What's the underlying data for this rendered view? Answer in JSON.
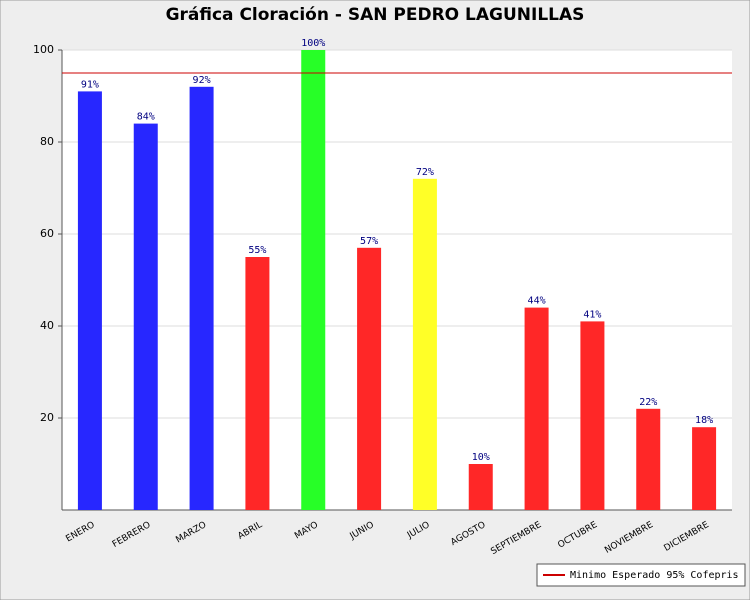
{
  "chart_data": {
    "type": "bar",
    "title": "Gráfica Cloración - SAN PEDRO LAGUNILLAS",
    "categories": [
      "ENERO",
      "FEBRERO",
      "MARZO",
      "ABRIL",
      "MAYO",
      "JUNIO",
      "JULIO",
      "AGOSTO",
      "SEPTIEMBRE",
      "OCTUBRE",
      "NOVIEMBRE",
      "DICIEMBRE"
    ],
    "values": [
      91,
      84,
      92,
      55,
      100,
      57,
      72,
      10,
      44,
      41,
      22,
      18
    ],
    "value_labels": [
      "91%",
      "84%",
      "92%",
      "55%",
      "100%",
      "57%",
      "72%",
      "10%",
      "44%",
      "41%",
      "22%",
      "18%"
    ],
    "colors": [
      "#2727ff",
      "#2727ff",
      "#2727ff",
      "#ff2727",
      "#27ff27",
      "#ff2727",
      "#ffff27",
      "#ff2727",
      "#ff2727",
      "#ff2727",
      "#ff2727",
      "#ff2727"
    ],
    "ylim": [
      0,
      100
    ],
    "yticks": [
      20,
      40,
      60,
      80,
      100
    ],
    "grid": true,
    "reference_line": {
      "value": 95,
      "name": "Minimo Esperado 95% Cofepris",
      "color": "#cc0000"
    },
    "legend": "bottom-right"
  }
}
